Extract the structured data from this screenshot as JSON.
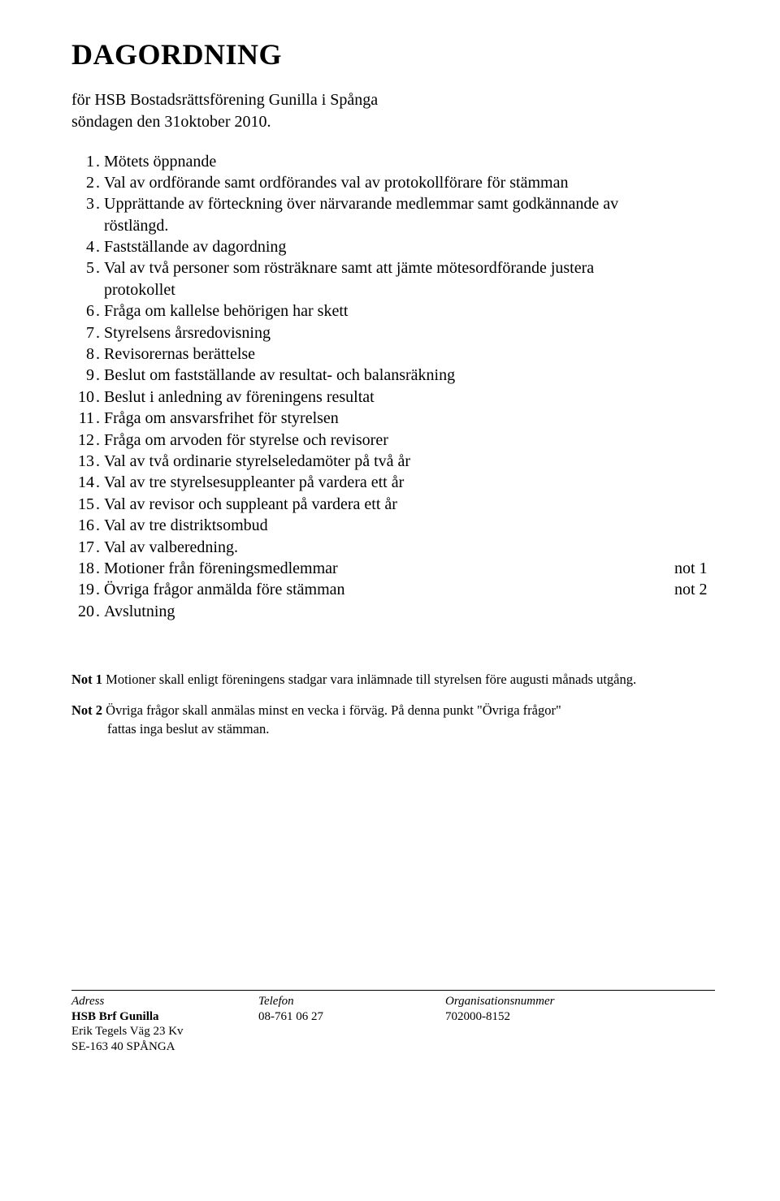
{
  "document": {
    "title": "DAGORDNING",
    "subtitle_line1": "för HSB Bostadsrättsförening Gunilla i Spånga",
    "subtitle_line2": "söndagen den 31oktober 2010.",
    "title_fontsize": 36,
    "body_fontsize": 20,
    "notes_fontsize": 16.5,
    "font_family": "Times New Roman",
    "background_color": "#ffffff",
    "text_color": "#000000"
  },
  "agenda": [
    {
      "n": "1",
      "text": "Mötets öppnande",
      "note": ""
    },
    {
      "n": "2",
      "text": "Val av ordförande samt ordförandes val av protokollförare för stämman",
      "note": ""
    },
    {
      "n": "3",
      "text": "Upprättande av förteckning över närvarande medlemmar samt godkännande av röstlängd.",
      "note": ""
    },
    {
      "n": "4",
      "text": "Fastställande av dagordning",
      "note": ""
    },
    {
      "n": "5",
      "text": "Val av två personer som rösträknare samt att jämte mötesordförande justera protokollet",
      "note": ""
    },
    {
      "n": "6",
      "text": "Fråga om kallelse behörigen har skett",
      "note": ""
    },
    {
      "n": "7",
      "text": "Styrelsens årsredovisning",
      "note": ""
    },
    {
      "n": "8",
      "text": "Revisorernas berättelse",
      "note": ""
    },
    {
      "n": "9",
      "text": "Beslut om fastställande av resultat- och balansräkning",
      "note": ""
    },
    {
      "n": "10",
      "text": "Beslut i anledning av föreningens resultat",
      "note": ""
    },
    {
      "n": "11",
      "text": "Fråga om ansvarsfrihet för styrelsen",
      "note": ""
    },
    {
      "n": "12",
      "text": "Fråga om arvoden för styrelse och revisorer",
      "note": ""
    },
    {
      "n": "13",
      "text": "Val av två ordinarie styrelseledamöter på två år",
      "note": ""
    },
    {
      "n": "14",
      "text": "Val av tre styrelsesuppleanter på vardera ett år",
      "note": ""
    },
    {
      "n": "15",
      "text": "Val av revisor och suppleant på vardera ett år",
      "note": ""
    },
    {
      "n": "16",
      "text": "Val av tre distriktsombud",
      "note": ""
    },
    {
      "n": "17",
      "text": "Val av valberedning.",
      "note": ""
    },
    {
      "n": "18",
      "text": "Motioner från föreningsmedlemmar",
      "note": "not 1"
    },
    {
      "n": "19",
      "text": "Övriga frågor anmälda före stämman",
      "note": "not 2"
    },
    {
      "n": "20",
      "text": "Avslutning",
      "note": ""
    }
  ],
  "notes": {
    "note1_label": "Not 1",
    "note1_text": "  Motioner skall enligt föreningens stadgar vara inlämnade till styrelsen före augusti månads utgång.",
    "note2_label": "Not 2",
    "note2_text_line1": " Övriga frågor skall anmälas minst en vecka i förväg. På denna punkt \"Övriga frågor\"",
    "note2_text_line2": "fattas inga beslut av stämman."
  },
  "footer": {
    "col1_head": "Adress",
    "col1_l1": "HSB Brf Gunilla",
    "col1_l2": "Erik Tegels Väg 23 Kv",
    "col1_l3": "SE-163 40 SPÅNGA",
    "col2_head": "Telefon",
    "col2_l1": "08-761 06 27",
    "col3_head": "Organisationsnummer",
    "col3_l1": "702000-8152",
    "font_family": "Comic Sans MS",
    "rule_color": "#000000"
  }
}
